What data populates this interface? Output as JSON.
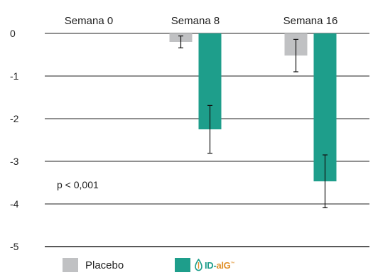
{
  "chart_data": {
    "type": "bar",
    "categories": [
      "Semana 0",
      "Semana 8",
      "Semana 16"
    ],
    "series": [
      {
        "name": "Placebo",
        "values": [
          0,
          -0.2,
          -0.52
        ],
        "error": [
          0,
          0.14,
          0.38
        ],
        "color": "#c0c1c3"
      },
      {
        "name": "ID-alG",
        "values": [
          0,
          -2.25,
          -3.47
        ],
        "error": [
          0,
          0.56,
          0.62
        ],
        "color": "#1e9e8b"
      }
    ],
    "ylim": [
      -5,
      0
    ],
    "yticks": [
      "0",
      "-1",
      "-2",
      "-3",
      "-4",
      "-5"
    ],
    "annotation": "p < 0,001",
    "legend": [
      {
        "label": "Placebo",
        "color": "#c0c1c3"
      },
      {
        "label": "ID-alG",
        "logo_text": "ID-alG",
        "color": "#1e9e8b"
      }
    ],
    "grid": "horizontal",
    "legend_position": "bottom"
  }
}
